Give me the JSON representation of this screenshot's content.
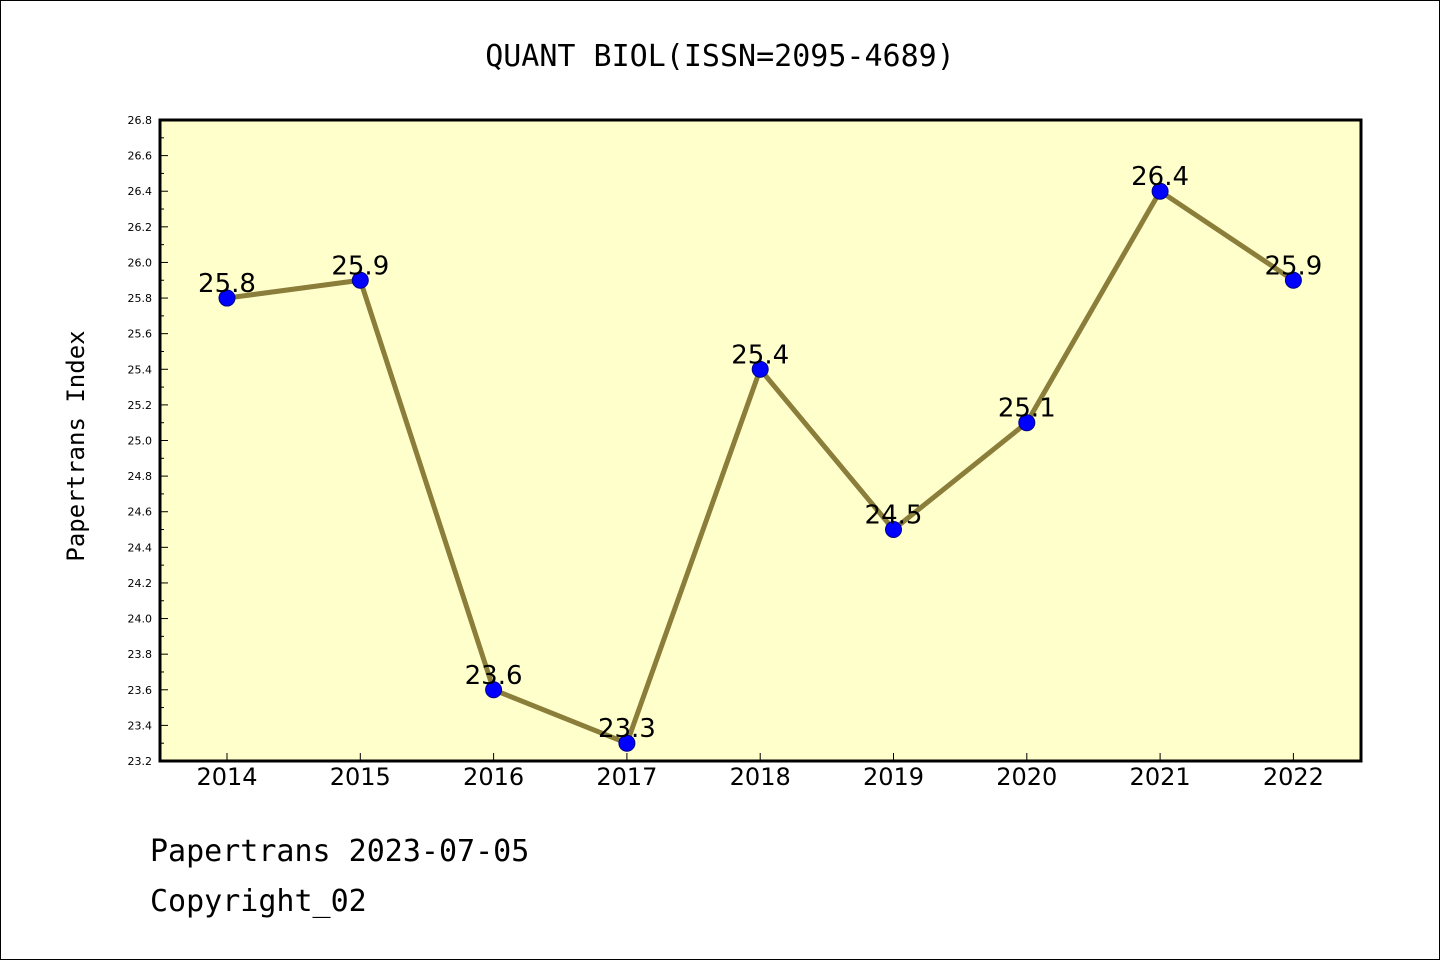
{
  "chart_data": {
    "type": "line",
    "title": "QUANT BIOL(ISSN=2095-4689)",
    "xlabel": "",
    "ylabel": "Papertrans Index",
    "categories": [
      "2014",
      "2015",
      "2016",
      "2017",
      "2018",
      "2019",
      "2020",
      "2021",
      "2022"
    ],
    "series": [
      {
        "values": [
          25.8,
          25.9,
          23.6,
          23.3,
          25.4,
          24.5,
          25.1,
          26.4,
          25.9
        ],
        "data_labels": [
          "25.8",
          "25.9",
          "23.6",
          "23.3",
          "25.4",
          "24.5",
          "25.1",
          "26.4",
          "25.9"
        ]
      }
    ],
    "ylim": [
      23.2,
      26.8
    ],
    "yticks": [
      "23.2",
      "23.4",
      "23.6",
      "23.8",
      "24.0",
      "24.2",
      "24.4",
      "24.6",
      "24.8",
      "25.0",
      "25.2",
      "25.4",
      "25.6",
      "25.8",
      "26.0",
      "26.2",
      "26.4",
      "26.6",
      "26.8"
    ],
    "grid": false,
    "legend": "none",
    "colors": {
      "plot_background": "#ffffcc",
      "line": "#8b7d3a",
      "marker": "#0000ff",
      "axes": "#000000"
    }
  },
  "footer": {
    "date_line": "Papertrans 2023-07-05",
    "copyright": "Copyright_02"
  }
}
